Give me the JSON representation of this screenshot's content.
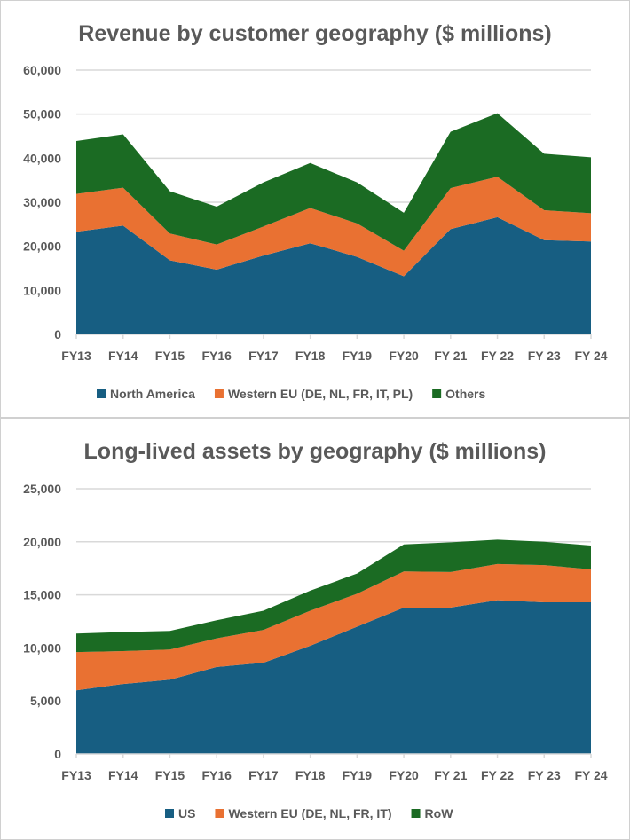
{
  "chart_data": [
    {
      "type": "area",
      "stacked": true,
      "title": "Revenue by customer geography ($ millions)",
      "xlabel": "",
      "ylabel": "",
      "categories": [
        "FY13",
        "FY14",
        "FY15",
        "FY16",
        "FY17",
        "FY18",
        "FY19",
        "FY20",
        "FY 21",
        "FY 22",
        "FY 23",
        "FY 24"
      ],
      "ylim": [
        0,
        60000
      ],
      "yticks": [
        "0",
        "10,000",
        "20,000",
        "30,000",
        "40,000",
        "50,000",
        "60,000"
      ],
      "ytick_values": [
        0,
        10000,
        20000,
        30000,
        40000,
        50000,
        60000
      ],
      "grid": true,
      "legend_position": "bottom",
      "series": [
        {
          "name": "North America",
          "color": "#175E82",
          "values": [
            23300,
            24700,
            16800,
            14700,
            17900,
            20700,
            17600,
            13200,
            23900,
            26600,
            21400,
            21100
          ]
        },
        {
          "name": "Western EU (DE, NL, FR, IT, PL)",
          "color": "#E97132",
          "values": [
            8600,
            8600,
            6100,
            5700,
            6600,
            8000,
            7600,
            5800,
            9300,
            9200,
            6800,
            6400
          ]
        },
        {
          "name": "Others",
          "color": "#1B6B23",
          "values": [
            12000,
            12100,
            9600,
            8600,
            10000,
            10200,
            9300,
            8600,
            12800,
            14400,
            12800,
            12700
          ]
        }
      ]
    },
    {
      "type": "area",
      "stacked": true,
      "title": "Long-lived assets by geography ($ millions)",
      "xlabel": "",
      "ylabel": "",
      "categories": [
        "FY13",
        "FY14",
        "FY15",
        "FY16",
        "FY17",
        "FY18",
        "FY19",
        "FY20",
        "FY 21",
        "FY 22",
        "FY 23",
        "FY 24"
      ],
      "ylim": [
        0,
        25000
      ],
      "yticks": [
        "0",
        "5,000",
        "10,000",
        "15,000",
        "20,000",
        "25,000"
      ],
      "ytick_values": [
        0,
        5000,
        10000,
        15000,
        20000,
        25000
      ],
      "grid": true,
      "legend_position": "bottom",
      "series": [
        {
          "name": "US",
          "color": "#175E82",
          "values": [
            6000,
            6600,
            7000,
            8200,
            8600,
            10200,
            12000,
            13800,
            13800,
            14500,
            14300,
            14300
          ]
        },
        {
          "name": "Western EU (DE, NL, FR, IT)",
          "color": "#E97132",
          "values": [
            3600,
            3100,
            2850,
            2700,
            3100,
            3300,
            3100,
            3400,
            3350,
            3400,
            3500,
            3100
          ]
        },
        {
          "name": "RoW",
          "color": "#1B6B23",
          "values": [
            1750,
            1800,
            1750,
            1700,
            1800,
            1900,
            1900,
            2550,
            2800,
            2300,
            2200,
            2250
          ]
        }
      ]
    }
  ]
}
